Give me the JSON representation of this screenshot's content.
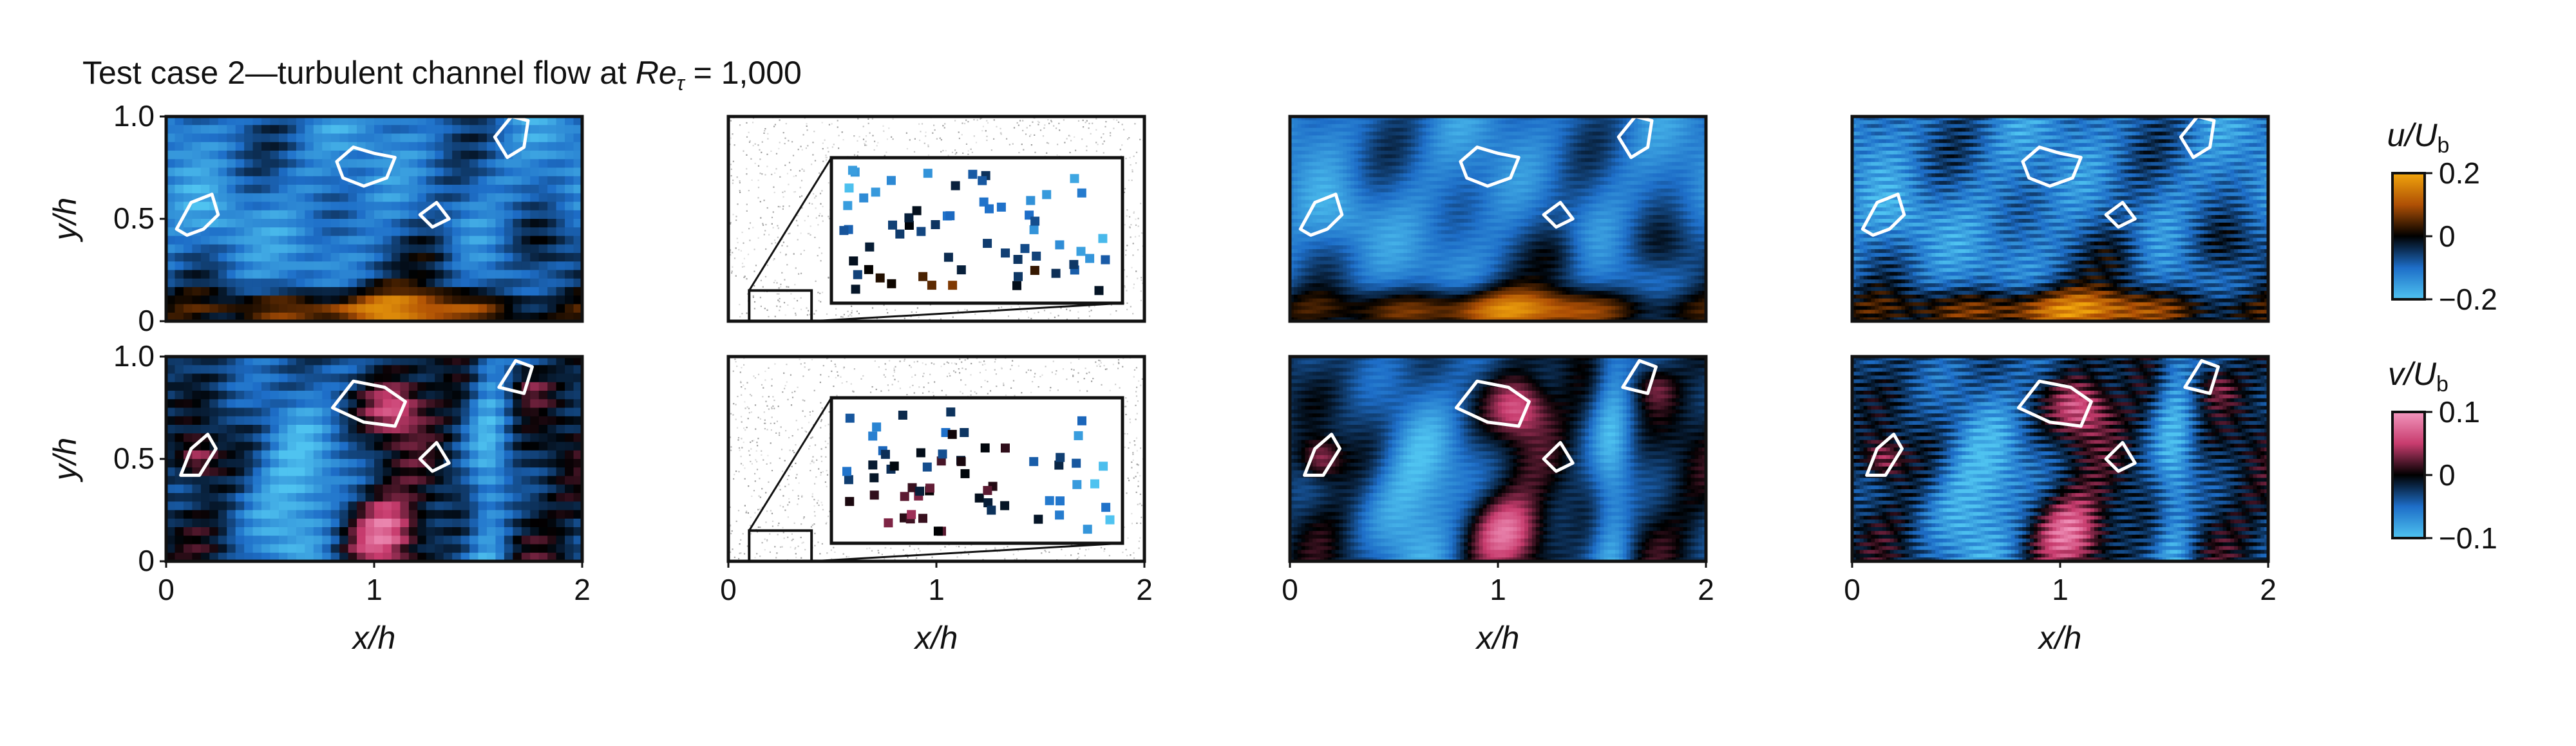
{
  "title": {
    "prefix": "Test case 2—turbulent channel flow at ",
    "symbol": "Re",
    "subscript": "τ",
    "suffix": " = 1,000"
  },
  "chart_data": {
    "type": "heatmap",
    "grid": {
      "rows": 2,
      "columns": 4
    },
    "xlabel": "x/h",
    "ylabel": "y/h",
    "xticks": [
      "0",
      "1",
      "2"
    ],
    "yticks": [
      "0",
      "0.5",
      "1.0"
    ],
    "xlim": [
      0,
      2
    ],
    "ylim": [
      0,
      1
    ],
    "fields": [
      {
        "key": "u",
        "colorbar_label": "u/U",
        "colorbar_label_sub": "b",
        "colorbar_ticks": [
          "0.2",
          "0",
          "−0.2"
        ],
        "range": [
          -0.2,
          0.2
        ],
        "colors": {
          "negative": "#4fc3f0",
          "zero": "#000000",
          "positive": "#f2a60d"
        }
      },
      {
        "key": "v",
        "colorbar_label": "v/U",
        "colorbar_label_sub": "b",
        "colorbar_ticks": [
          "0.1",
          "0",
          "−0.1"
        ],
        "range": [
          -0.1,
          0.1
        ],
        "colors": {
          "negative": "#4fc3f0",
          "zero": "#000000",
          "positive": "#f398bf"
        }
      }
    ],
    "inset_box": {
      "x": [
        0.1,
        0.4
      ],
      "y": [
        0,
        0.15
      ]
    },
    "contour_color": "#ffffff"
  }
}
